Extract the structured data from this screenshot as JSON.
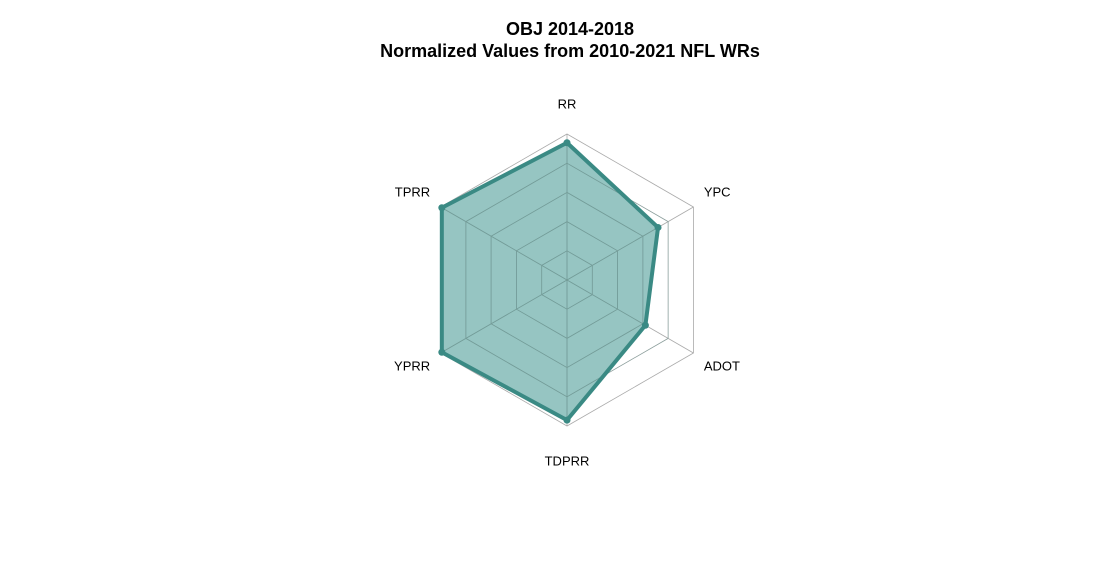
{
  "chart_data": {
    "type": "radar",
    "title": "OBJ 2014-2018",
    "subtitle": "Normalized Values from 2010-2021 NFL WRs",
    "axes": [
      "RR",
      "YPC",
      "ADOT",
      "TDPRR",
      "YPRR",
      "TPRR"
    ],
    "values": [
      0.94,
      0.72,
      0.62,
      0.96,
      0.99,
      0.99
    ],
    "range": [
      0,
      1
    ],
    "grid_levels": 5,
    "grid": true,
    "legend": "none",
    "colors": {
      "fill": "#2e8b85",
      "fill_opacity": 0.5,
      "stroke": "#3a8a84",
      "grid": "#aaaaaa",
      "inner_grid": "#7a9c99"
    }
  }
}
